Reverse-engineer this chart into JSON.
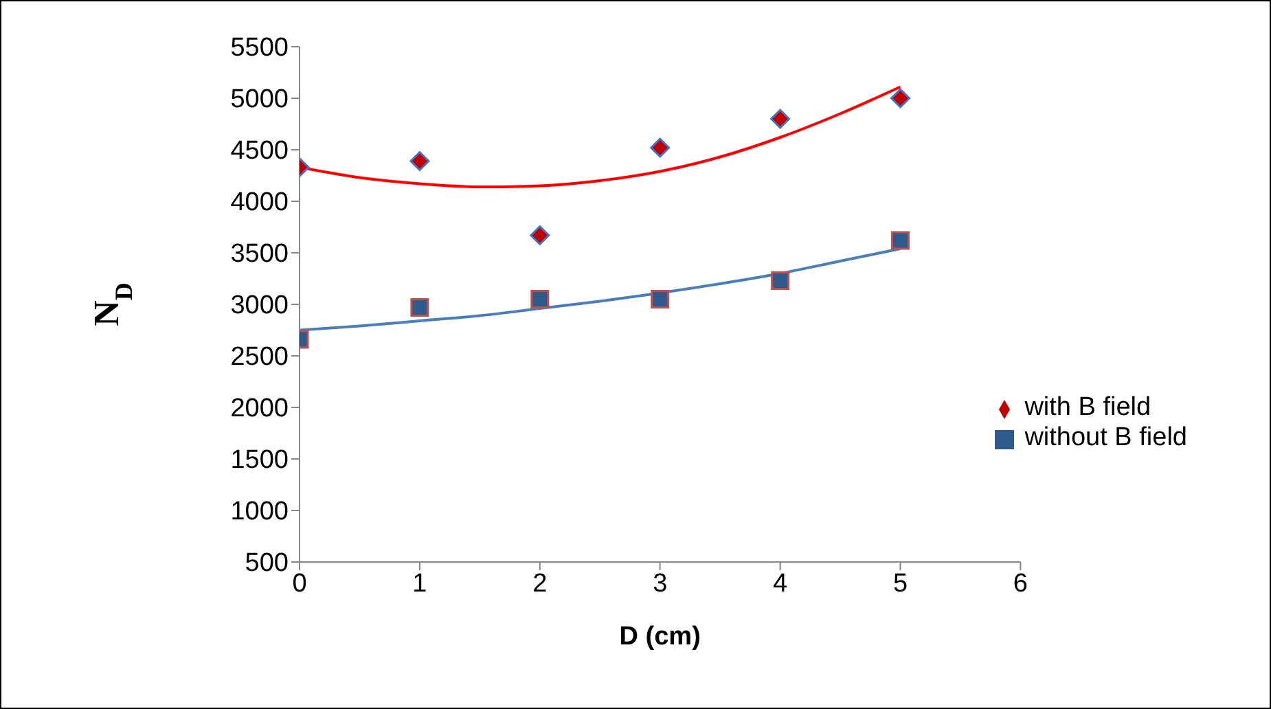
{
  "chart_data": {
    "type": "scatter",
    "xlabel": "D (cm)",
    "ylabel": "N$_{D}$",
    "xlim": [
      0,
      6
    ],
    "xticks": [
      0,
      1,
      2,
      3,
      4,
      5,
      6
    ],
    "ylim": [
      500,
      5500
    ],
    "yticks": [
      500,
      1000,
      1500,
      2000,
      2500,
      3000,
      3500,
      4000,
      4500,
      5000,
      5500
    ],
    "grid": false,
    "legend": "right",
    "x": [
      0,
      1,
      2,
      3,
      4,
      5
    ],
    "series": [
      {
        "name": "with B field",
        "marker": "diamond",
        "color": "#c00000",
        "values": [
          4330,
          4390,
          3670,
          4520,
          4800,
          5000
        ]
      },
      {
        "name": "without B field",
        "marker": "square",
        "color": "#2e5a8c",
        "values": [
          2660,
          2970,
          3050,
          3050,
          3230,
          3620
        ]
      },
      {
        "type": "line",
        "marker": "none",
        "color": "#ff0000",
        "x": [
          0,
          0.5,
          1,
          1.5,
          2,
          2.5,
          3,
          3.5,
          4,
          4.5,
          5
        ],
        "values": [
          4330,
          4230,
          4170,
          4140,
          4150,
          4200,
          4290,
          4430,
          4620,
          4850,
          5110
        ]
      },
      {
        "type": "line",
        "marker": "none",
        "color": "#4a7ebb",
        "x": [
          0,
          0.5,
          1,
          1.5,
          2,
          2.5,
          3,
          3.5,
          4,
          4.5,
          5
        ],
        "values": [
          2750,
          2790,
          2840,
          2890,
          2960,
          3030,
          3110,
          3200,
          3300,
          3420,
          3540
        ]
      }
    ]
  }
}
